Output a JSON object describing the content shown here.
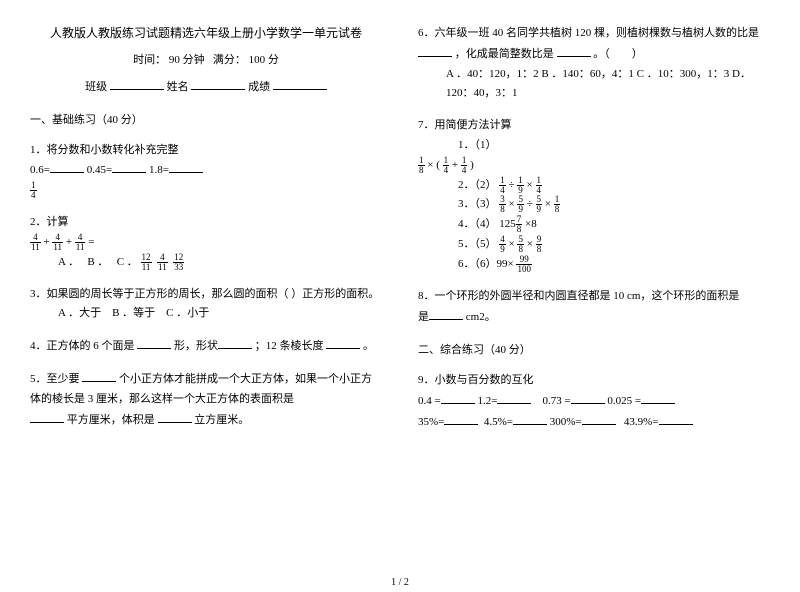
{
  "header": {
    "title": "人教版人教版练习试题精选六年级上册小学数学一单元试卷",
    "time_label": "时间：",
    "time_value": "90 分钟",
    "full_label": "满分：",
    "full_value": "100 分",
    "class_label": "班级",
    "name_label": "姓名",
    "score_label": "成绩"
  },
  "sec1": {
    "title": "一、基础练习（40 分）"
  },
  "q1": {
    "text": "1．将分数和小数转化补充完整",
    "a": "0.6=",
    "b": "0.45=",
    "c": "1.8=",
    "frac_n": "1",
    "frac_d": "4"
  },
  "q2": {
    "text": "2．计算",
    "eq_head": "=",
    "f1n": "4",
    "f1d": "11",
    "p": "+",
    "f2n": "4",
    "f2d": "11",
    "f3n": "4",
    "f3d": "11",
    "opts_a": "A ．",
    "opts_b": "B ．",
    "opts_c": "C ．",
    "c1n": "12",
    "c1d": "11",
    "c2n": "4",
    "c2d": "11",
    "c3n": "12",
    "c3d": "33"
  },
  "q3": {
    "text": "3．如果圆的周长等于正方形的周长，那么圆的面积（ ）正方形的面积。",
    "opts": "A ．大于　B ．等于　C ．小于"
  },
  "q4": {
    "t1": "4．正方体的 6 个面是 ",
    "t2": "形，形状",
    "t3": "；12 条棱长度 ",
    "t4": "。"
  },
  "q5": {
    "t1": "5．至少要 ",
    "t2": "个小正方体才能拼成一个大正方体，如果一个小正方体的棱长是 3 厘米，那么这样一个大正方体的表面积是",
    "t3": "平方厘米，体积是 ",
    "t4": "立方厘米。"
  },
  "q6": {
    "t1": "6．六年级一班 40 名同学共植树 120 棵，则植树棵数与植树人数的比是 ",
    "t2": "，化成最简整数比是 ",
    "t3": "。（　　）",
    "opts": "A ．40：120，1：2 B ．140：60，4：1 C ．10：300，1：3 D．120：40，3：1"
  },
  "q7": {
    "text": "7．用简便方法计算",
    "l1a": "1．（1）",
    "l1_fa_n": "1",
    "l1_fa_d": "8",
    "l1_op": "×",
    "l1_lp": "(",
    "l1_fb_n": "1",
    "l1_fb_d": "4",
    "l1_plus": "+",
    "l1_fc_n": "1",
    "l1_fc_d": "4",
    "l1_rp": ")",
    "l2a": "2．（2）",
    "l2_f1n": "1",
    "l2_f1d": "4",
    "l2_op1": "÷",
    "l2_f2n": "1",
    "l2_f2d": "9",
    "l2_op2": "×",
    "l2_f3n": "1",
    "l2_f3d": "4",
    "l3a": "3．（3）",
    "l3_f1n": "3",
    "l3_f1d": "8",
    "l3_op1": "×",
    "l3_f2n": "5",
    "l3_f2d": "9",
    "l3_op2": "÷",
    "l3_f3n": "5",
    "l3_f3d": "9",
    "l3_op3": "×",
    "l3_f4n": "1",
    "l3_f4d": "8",
    "l4a": "4．（4）",
    "l4_f1n": "7",
    "l4_f1d": "8",
    "l4_pre": "125",
    "l4_op": "×8",
    "l5a": "5．（5）",
    "l5_f1n": "4",
    "l5_f1d": "9",
    "l5_op1": "×",
    "l5_f2n": "5",
    "l5_f2d": "8",
    "l5_op2": "×",
    "l5_f3n": "9",
    "l5_f3d": "8",
    "l6a": "6．（6）99×",
    "l6_fn": "99",
    "l6_fd": "100"
  },
  "q8": {
    "t1": "8．一个环形的外圆半径和内圆直径都是 10 cm，这个环形的面积是",
    "t2": " cm2。"
  },
  "sec2": {
    "title": "二、综合练习（40 分）"
  },
  "q9": {
    "text": "9．小数与百分数的互化",
    "r1a": "0.4 =",
    "r1b": "1.2=",
    "r1c": "0.73 =",
    "r1d": "0.025 =",
    "r2a": "35%=",
    "r2b": "4.5%=",
    "r2c": "300%=",
    "r2d": "43.9%="
  },
  "page_number": "1 / 2"
}
